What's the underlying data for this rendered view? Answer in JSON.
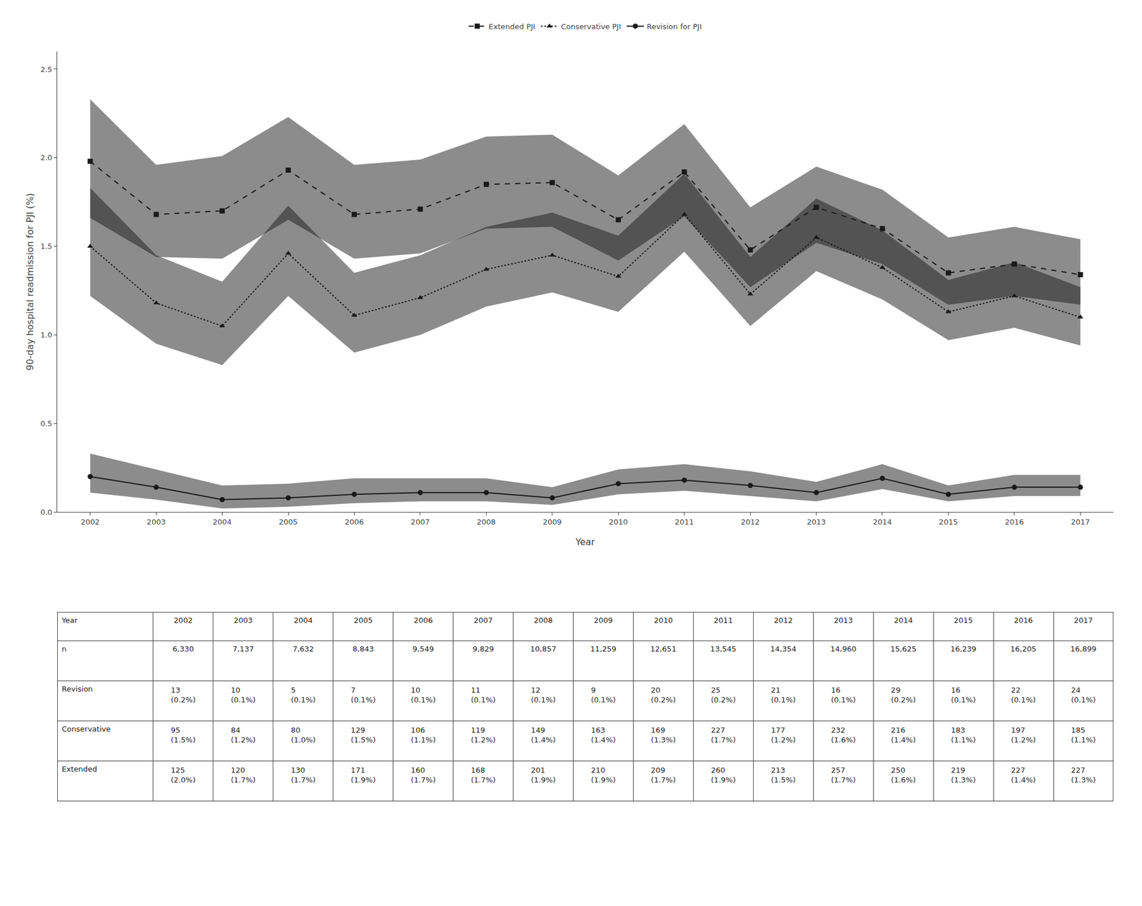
{
  "chart_data": [
    {
      "type": "line",
      "x": [
        2002,
        2003,
        2004,
        2005,
        2006,
        2007,
        2008,
        2009,
        2010,
        2011,
        2012,
        2013,
        2014,
        2015,
        2016,
        2017
      ],
      "xlabel": "Year",
      "ylabel": "90-day hospital readmission for PJI (%)",
      "xlim": [
        2001.5,
        2017.5
      ],
      "xticks": [
        2002,
        2003,
        2004,
        2005,
        2006,
        2007,
        2008,
        2009,
        2010,
        2011,
        2012,
        2013,
        2014,
        2015,
        2016,
        2017
      ],
      "ylim": [
        0.0,
        2.6
      ],
      "yticks": [
        {
          "value": 0.0,
          "label": "0.0"
        },
        0.5,
        {
          "value": 1.0,
          "label": "1.0"
        },
        1.5,
        {
          "value": 2.0,
          "label": "2.0"
        },
        2.5
      ],
      "grid": false,
      "legend": "top",
      "series": [
        {
          "name": "Revision for PJI",
          "color": "#1a1a1a",
          "marker": "circle",
          "line_style": "solid",
          "values": [
            0.2,
            0.14,
            0.07,
            0.08,
            0.1,
            0.11,
            0.11,
            0.08,
            0.16,
            0.18,
            0.15,
            0.11,
            0.19,
            0.1,
            0.14,
            0.14
          ],
          "ci_low": [
            0.11,
            0.07,
            0.02,
            0.03,
            0.05,
            0.06,
            0.06,
            0.04,
            0.1,
            0.12,
            0.09,
            0.06,
            0.13,
            0.06,
            0.09,
            0.09
          ],
          "ci_high": [
            0.33,
            0.24,
            0.15,
            0.16,
            0.19,
            0.19,
            0.19,
            0.14,
            0.24,
            0.27,
            0.23,
            0.17,
            0.27,
            0.15,
            0.21,
            0.21
          ]
        },
        {
          "name": "Conservative PJI",
          "color": "#1a1a1a",
          "marker": "triangle-up",
          "line_style": "dot",
          "values": [
            1.5,
            1.18,
            1.05,
            1.46,
            1.11,
            1.21,
            1.37,
            1.45,
            1.33,
            1.68,
            1.23,
            1.55,
            1.38,
            1.13,
            1.22,
            1.1
          ],
          "ci_low": [
            1.22,
            0.95,
            0.83,
            1.22,
            0.9,
            1.0,
            1.16,
            1.24,
            1.13,
            1.47,
            1.05,
            1.36,
            1.2,
            0.97,
            1.04,
            0.94
          ],
          "ci_high": [
            1.83,
            1.45,
            1.3,
            1.73,
            1.35,
            1.45,
            1.61,
            1.69,
            1.56,
            1.91,
            1.44,
            1.77,
            1.59,
            1.31,
            1.41,
            1.27
          ]
        },
        {
          "name": "Extended PJI",
          "color": "#1a1a1a",
          "marker": "square",
          "line_style": "dash",
          "values": [
            1.98,
            1.68,
            1.7,
            1.93,
            1.68,
            1.71,
            1.85,
            1.86,
            1.65,
            1.92,
            1.48,
            1.72,
            1.6,
            1.35,
            1.4,
            1.34
          ],
          "ci_low": [
            1.66,
            1.44,
            1.43,
            1.65,
            1.43,
            1.46,
            1.6,
            1.61,
            1.42,
            1.67,
            1.27,
            1.52,
            1.4,
            1.17,
            1.22,
            1.17
          ],
          "ci_high": [
            2.33,
            1.96,
            2.01,
            2.23,
            1.96,
            1.99,
            2.12,
            2.13,
            1.9,
            2.19,
            1.72,
            1.95,
            1.82,
            1.55,
            1.61,
            1.54
          ]
        }
      ]
    },
    {
      "type": "table",
      "row_labels": [
        "Year",
        "n",
        "Revision",
        "Conservative",
        "Extended"
      ],
      "rows": [
        [
          "2002",
          "2003",
          "2004",
          "2005",
          "2006",
          "2007",
          "2008",
          "2009",
          "2010",
          "2011",
          "2012",
          "2013",
          "2014",
          "2015",
          "2016",
          "2017"
        ],
        [
          "6,330",
          "7,137",
          "7,632",
          "8,843",
          "9,549",
          "9,829",
          "10,857",
          "11,259",
          "12,651",
          "13,545",
          "14,354",
          "14,960",
          "15,625",
          "16,239",
          "16,205",
          "16,899"
        ],
        [
          "13\n(0.2%)",
          "10\n(0.1%)",
          "5\n(0.1%)",
          "7\n(0.1%)",
          "10\n(0.1%)",
          "11\n(0.1%)",
          "12\n(0.1%)",
          "9\n(0.1%)",
          "20\n(0.2%)",
          "25\n(0.2%)",
          "21\n(0.1%)",
          "16\n(0.1%)",
          "29\n(0.2%)",
          "16\n(0.1%)",
          "22\n(0.1%)",
          "24\n(0.1%)"
        ],
        [
          "95\n(1.5%)",
          "84\n(1.2%)",
          "80\n(1.0%)",
          "129\n(1.5%)",
          "106\n(1.1%)",
          "119\n(1.2%)",
          "149\n(1.4%)",
          "163\n(1.4%)",
          "169\n(1.3%)",
          "227\n(1.7%)",
          "177\n(1.2%)",
          "232\n(1.6%)",
          "216\n(1.4%)",
          "183\n(1.1%)",
          "197\n(1.2%)",
          "185\n(1.1%)"
        ],
        [
          "125\n(2.0%)",
          "120\n(1.7%)",
          "130\n(1.7%)",
          "171\n(1.9%)",
          "160\n(1.7%)",
          "168\n(1.7%)",
          "201\n(1.9%)",
          "210\n(1.9%)",
          "209\n(1.7%)",
          "260\n(1.9%)",
          "213\n(1.5%)",
          "257\n(1.7%)",
          "250\n(1.6%)",
          "219\n(1.3%)",
          "227\n(1.4%)",
          "227\n(1.3%)"
        ]
      ]
    }
  ]
}
